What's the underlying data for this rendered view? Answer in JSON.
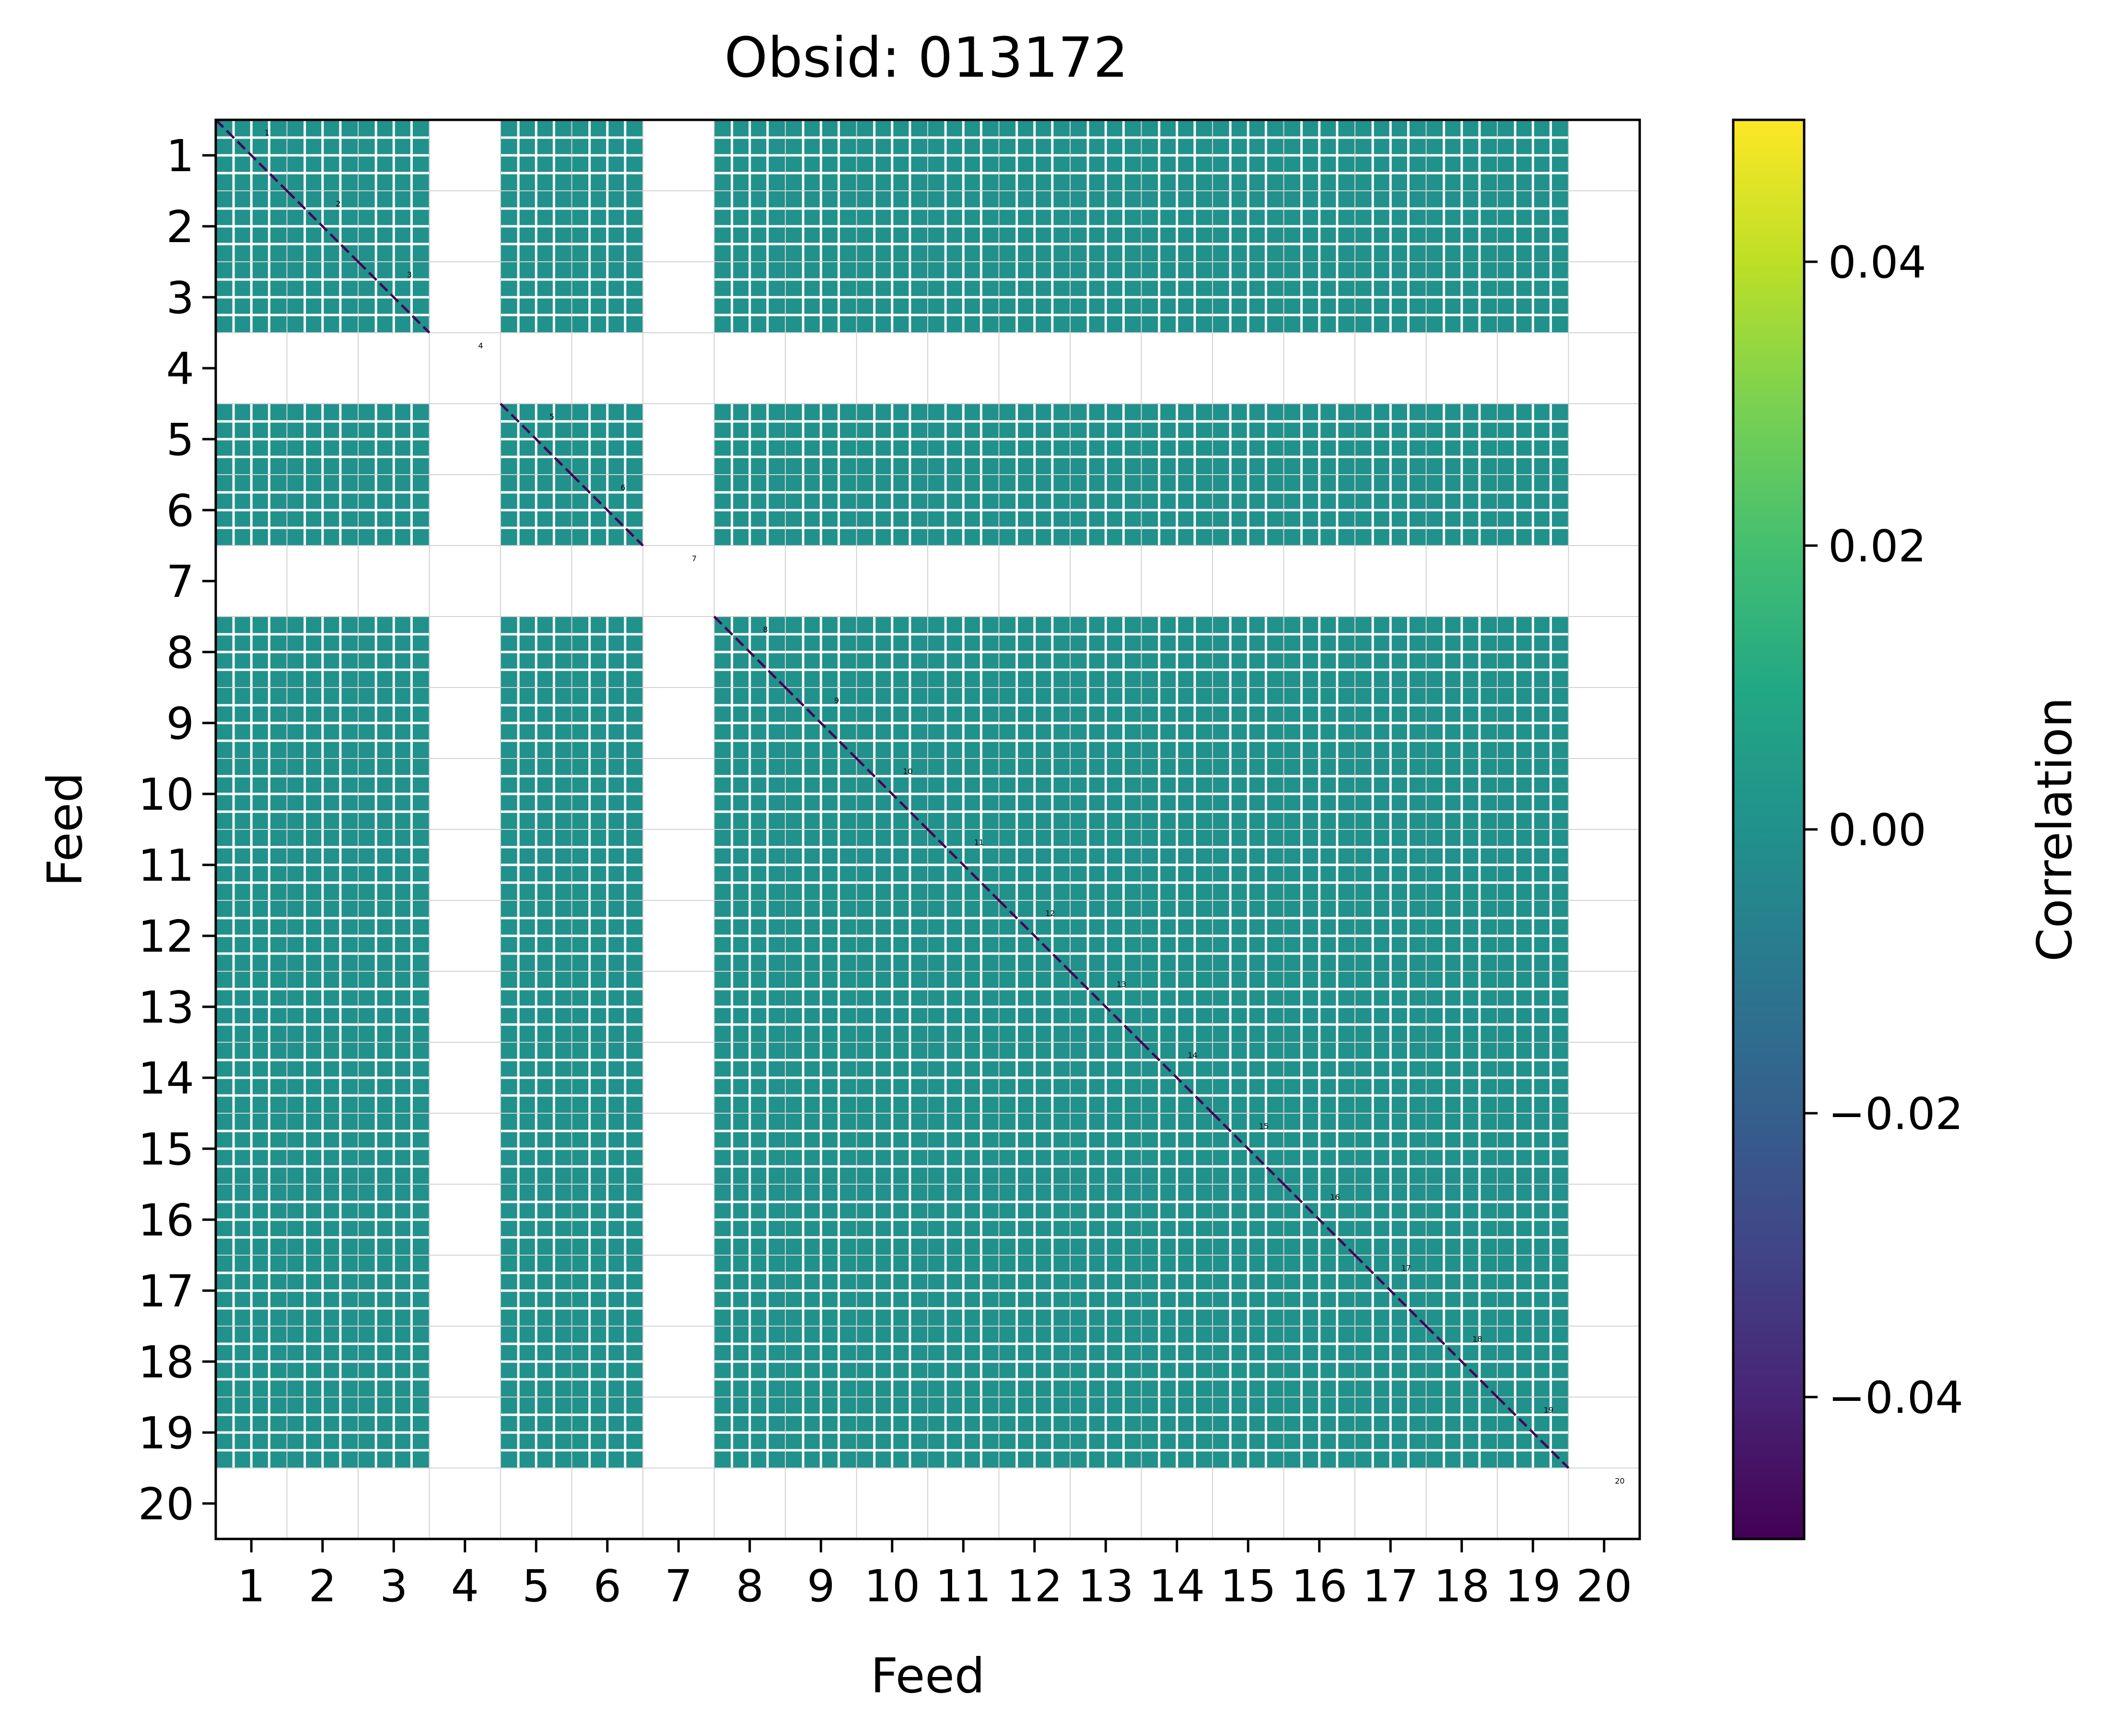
{
  "chart_data": {
    "type": "heatmap",
    "title": "Obsid: 013172",
    "xlabel": "Feed",
    "ylabel": "Feed",
    "x_ticks": [
      "1",
      "2",
      "3",
      "4",
      "5",
      "6",
      "7",
      "8",
      "9",
      "10",
      "11",
      "12",
      "13",
      "14",
      "15",
      "16",
      "17",
      "18",
      "19",
      "20"
    ],
    "y_ticks": [
      "1",
      "2",
      "3",
      "4",
      "5",
      "6",
      "7",
      "8",
      "9",
      "10",
      "11",
      "12",
      "13",
      "14",
      "15",
      "16",
      "17",
      "18",
      "19",
      "20"
    ],
    "feed_labels": [
      "1",
      "2",
      "3",
      "4",
      "5",
      "6",
      "7",
      "8",
      "9",
      "10",
      "11",
      "12",
      "13",
      "14",
      "15",
      "16",
      "17",
      "18",
      "19",
      "20"
    ],
    "active_feeds": [
      1,
      2,
      3,
      5,
      6,
      8,
      9,
      10,
      11,
      12,
      13,
      14,
      15,
      16,
      17,
      18,
      19
    ],
    "masked_feeds": [
      4,
      7,
      20
    ],
    "sidebands_per_feed": 4,
    "off_diagonal_value": 0.0,
    "diagonal_value": -0.05,
    "colorbar": {
      "label": "Correlation",
      "vmin": -0.05,
      "vmax": 0.05,
      "ticks": [
        "0.04",
        "0.02",
        "0.00",
        "−0.02",
        "−0.04"
      ],
      "tick_values": [
        0.04,
        0.02,
        0.0,
        -0.02,
        -0.04
      ],
      "colormap": "viridis"
    },
    "colors": {
      "cell": "#21918c",
      "masked": "#ffffff",
      "diagonal": "#440154",
      "grid": "#d3d3d3"
    }
  }
}
